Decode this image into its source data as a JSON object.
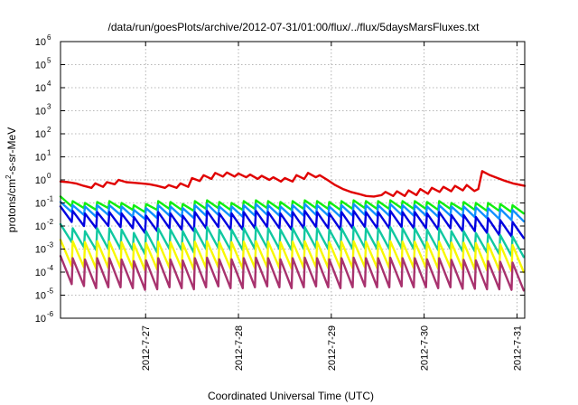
{
  "chart_data": {
    "type": "line",
    "title": "/data/run/goesPlots/archive/2012-07-31/01:00/flux/../flux/5daysMarsFluxes.txt",
    "xlabel": "Coordinated Universal Time (UTC)",
    "ylabel": {
      "base": "protons/cm",
      "sup": "2",
      "rest": "-s-sr-MeV"
    },
    "yscale": "log",
    "ylim_exp": [
      -6,
      6
    ],
    "yticks": [
      {
        "base": "10",
        "exp": "-6"
      },
      {
        "base": "10",
        "exp": "-5"
      },
      {
        "base": "10",
        "exp": "-4"
      },
      {
        "base": "10",
        "exp": "-3"
      },
      {
        "base": "10",
        "exp": "-2"
      },
      {
        "base": "10",
        "exp": "-1"
      },
      {
        "base": "10",
        "exp": "0"
      },
      {
        "base": "10",
        "exp": "1"
      },
      {
        "base": "10",
        "exp": "2"
      },
      {
        "base": "10",
        "exp": "3"
      },
      {
        "base": "10",
        "exp": "4"
      },
      {
        "base": "10",
        "exp": "5"
      },
      {
        "base": "10",
        "exp": "6"
      }
    ],
    "xlim": [
      "2012-07-26 02:00",
      "2012-07-31 02:00"
    ],
    "xticks": [
      {
        "label": "2012-7-27",
        "at": "2012-07-27 00:00"
      },
      {
        "label": "2012-7-28",
        "at": "2012-07-28 00:00"
      },
      {
        "label": "2012-7-29",
        "at": "2012-07-29 00:00"
      },
      {
        "label": "2012-7-30",
        "at": "2012-07-30 00:00"
      },
      {
        "label": "2012-7-31",
        "at": "2012-07-31 00:00"
      }
    ],
    "grid": true,
    "series": [
      {
        "color": "#e00000",
        "points": [
          [
            "2012-07-26 02:00",
            0.85
          ],
          [
            "2012-07-26 04:00",
            0.8
          ],
          [
            "2012-07-26 06:00",
            0.7
          ],
          [
            "2012-07-26 08:00",
            0.55
          ],
          [
            "2012-07-26 10:00",
            0.45
          ],
          [
            "2012-07-26 11:00",
            0.7
          ],
          [
            "2012-07-26 13:00",
            0.5
          ],
          [
            "2012-07-26 14:00",
            0.8
          ],
          [
            "2012-07-26 16:00",
            0.65
          ],
          [
            "2012-07-26 17:00",
            1.0
          ],
          [
            "2012-07-26 19:00",
            0.8
          ],
          [
            "2012-07-26 21:00",
            0.75
          ],
          [
            "2012-07-26 23:00",
            0.7
          ],
          [
            "2012-07-27 01:00",
            0.65
          ],
          [
            "2012-07-27 03:00",
            0.55
          ],
          [
            "2012-07-27 05:00",
            0.45
          ],
          [
            "2012-07-27 06:00",
            0.6
          ],
          [
            "2012-07-27 08:00",
            0.45
          ],
          [
            "2012-07-27 09:00",
            0.7
          ],
          [
            "2012-07-27 11:00",
            0.5
          ],
          [
            "2012-07-27 12:00",
            1.2
          ],
          [
            "2012-07-27 14:00",
            0.9
          ],
          [
            "2012-07-27 15:00",
            1.6
          ],
          [
            "2012-07-27 17:00",
            1.1
          ],
          [
            "2012-07-27 18:00",
            2.0
          ],
          [
            "2012-07-27 20:00",
            1.4
          ],
          [
            "2012-07-27 21:00",
            2.1
          ],
          [
            "2012-07-27 23:00",
            1.4
          ],
          [
            "2012-07-28 00:00",
            1.9
          ],
          [
            "2012-07-28 02:00",
            1.3
          ],
          [
            "2012-07-28 03:00",
            1.7
          ],
          [
            "2012-07-28 05:00",
            1.1
          ],
          [
            "2012-07-28 06:00",
            1.5
          ],
          [
            "2012-07-28 08:00",
            1.0
          ],
          [
            "2012-07-28 09:00",
            1.3
          ],
          [
            "2012-07-28 11:00",
            0.85
          ],
          [
            "2012-07-28 12:00",
            1.2
          ],
          [
            "2012-07-28 14:00",
            0.85
          ],
          [
            "2012-07-28 15:00",
            1.6
          ],
          [
            "2012-07-28 17:00",
            1.1
          ],
          [
            "2012-07-28 18:00",
            2.0
          ],
          [
            "2012-07-28 20:00",
            1.3
          ],
          [
            "2012-07-28 21:00",
            1.6
          ],
          [
            "2012-07-28 23:00",
            1.0
          ],
          [
            "2012-07-29 01:00",
            0.6
          ],
          [
            "2012-07-29 03:00",
            0.4
          ],
          [
            "2012-07-29 05:00",
            0.3
          ],
          [
            "2012-07-29 07:00",
            0.25
          ],
          [
            "2012-07-29 09:00",
            0.2
          ],
          [
            "2012-07-29 11:00",
            0.19
          ],
          [
            "2012-07-29 13:00",
            0.22
          ],
          [
            "2012-07-29 14:00",
            0.3
          ],
          [
            "2012-07-29 16:00",
            0.2
          ],
          [
            "2012-07-29 17:00",
            0.32
          ],
          [
            "2012-07-29 19:00",
            0.2
          ],
          [
            "2012-07-29 20:00",
            0.35
          ],
          [
            "2012-07-29 22:00",
            0.22
          ],
          [
            "2012-07-29 23:00",
            0.4
          ],
          [
            "2012-07-30 01:00",
            0.25
          ],
          [
            "2012-07-30 02:00",
            0.45
          ],
          [
            "2012-07-30 04:00",
            0.3
          ],
          [
            "2012-07-30 05:00",
            0.5
          ],
          [
            "2012-07-30 07:00",
            0.32
          ],
          [
            "2012-07-30 08:00",
            0.55
          ],
          [
            "2012-07-30 10:00",
            0.35
          ],
          [
            "2012-07-30 11:00",
            0.6
          ],
          [
            "2012-07-30 13:00",
            0.33
          ],
          [
            "2012-07-30 14:00",
            0.4
          ],
          [
            "2012-07-30 15:00",
            2.4
          ],
          [
            "2012-07-30 17:00",
            1.6
          ],
          [
            "2012-07-30 19:00",
            1.2
          ],
          [
            "2012-07-30 21:00",
            0.9
          ],
          [
            "2012-07-30 23:00",
            0.7
          ],
          [
            "2012-07-31 01:00",
            0.6
          ],
          [
            "2012-07-31 02:00",
            0.55
          ]
        ]
      },
      {
        "color": "#10ee10",
        "sawtooth": {
          "peaks": [
            0.19,
            0.12,
            0.1,
            0.11,
            0.12,
            0.1,
            0.08,
            0.09,
            0.12,
            0.11,
            0.09,
            0.12,
            0.13,
            0.11,
            0.1,
            0.12,
            0.13,
            0.12,
            0.11,
            0.12,
            0.13,
            0.12,
            0.11,
            0.12,
            0.13,
            0.12,
            0.12,
            0.13,
            0.12,
            0.12,
            0.11,
            0.12,
            0.1,
            0.11,
            0.1,
            0.1,
            0.09,
            0.08
          ],
          "troughs": [
            0.07,
            0.06,
            0.05,
            0.06,
            0.06,
            0.05,
            0.04,
            0.05,
            0.055,
            0.05,
            0.045,
            0.055,
            0.06,
            0.05,
            0.05,
            0.055,
            0.06,
            0.055,
            0.05,
            0.055,
            0.06,
            0.055,
            0.05,
            0.055,
            0.06,
            0.055,
            0.055,
            0.06,
            0.055,
            0.055,
            0.05,
            0.055,
            0.05,
            0.05,
            0.045,
            0.045,
            0.04,
            0.035
          ]
        }
      },
      {
        "color": "#1090ff",
        "sawtooth": {
          "peaks": [
            0.11,
            0.08,
            0.07,
            0.08,
            0.08,
            0.07,
            0.05,
            0.06,
            0.08,
            0.07,
            0.06,
            0.08,
            0.09,
            0.07,
            0.07,
            0.08,
            0.09,
            0.08,
            0.07,
            0.08,
            0.09,
            0.08,
            0.07,
            0.08,
            0.09,
            0.08,
            0.08,
            0.09,
            0.08,
            0.08,
            0.07,
            0.08,
            0.07,
            0.07,
            0.065,
            0.06,
            0.055,
            0.05
          ],
          "troughs": [
            0.04,
            0.03,
            0.025,
            0.03,
            0.03,
            0.025,
            0.02,
            0.022,
            0.028,
            0.025,
            0.022,
            0.028,
            0.03,
            0.026,
            0.025,
            0.028,
            0.03,
            0.028,
            0.025,
            0.028,
            0.03,
            0.028,
            0.025,
            0.028,
            0.03,
            0.028,
            0.028,
            0.03,
            0.028,
            0.028,
            0.025,
            0.028,
            0.025,
            0.024,
            0.022,
            0.02,
            0.018,
            0.016
          ]
        }
      },
      {
        "color": "#0000e0",
        "sawtooth": {
          "peaks": [
            0.07,
            0.045,
            0.035,
            0.04,
            0.04,
            0.035,
            0.025,
            0.028,
            0.04,
            0.035,
            0.028,
            0.04,
            0.045,
            0.035,
            0.035,
            0.04,
            0.045,
            0.04,
            0.035,
            0.04,
            0.045,
            0.04,
            0.035,
            0.04,
            0.045,
            0.04,
            0.04,
            0.045,
            0.04,
            0.04,
            0.035,
            0.04,
            0.03,
            0.03,
            0.025,
            0.022,
            0.018,
            0.015
          ],
          "troughs": [
            0.015,
            0.01,
            0.008,
            0.01,
            0.009,
            0.008,
            0.005,
            0.006,
            0.008,
            0.007,
            0.006,
            0.008,
            0.009,
            0.007,
            0.007,
            0.008,
            0.009,
            0.008,
            0.007,
            0.008,
            0.009,
            0.008,
            0.007,
            0.008,
            0.009,
            0.008,
            0.008,
            0.009,
            0.008,
            0.008,
            0.007,
            0.008,
            0.006,
            0.006,
            0.005,
            0.004,
            0.0035,
            0.003
          ]
        }
      },
      {
        "color": "#10c8a0",
        "sawtooth": {
          "peaks": [
            0.012,
            0.008,
            0.006,
            0.008,
            0.008,
            0.007,
            0.005,
            0.006,
            0.008,
            0.007,
            0.006,
            0.008,
            0.009,
            0.007,
            0.007,
            0.008,
            0.009,
            0.008,
            0.007,
            0.008,
            0.009,
            0.008,
            0.007,
            0.008,
            0.009,
            0.008,
            0.008,
            0.009,
            0.008,
            0.008,
            0.007,
            0.008,
            0.006,
            0.006,
            0.005,
            0.0045,
            0.004,
            0.0035
          ],
          "troughs": [
            0.002,
            0.0012,
            0.0009,
            0.001,
            0.001,
            0.0009,
            0.0006,
            0.0007,
            0.001,
            0.0009,
            0.0007,
            0.001,
            0.0011,
            0.0009,
            0.0009,
            0.001,
            0.0011,
            0.001,
            0.0009,
            0.001,
            0.0011,
            0.001,
            0.0009,
            0.001,
            0.0011,
            0.001,
            0.001,
            0.0011,
            0.001,
            0.001,
            0.0009,
            0.001,
            0.0008,
            0.0008,
            0.0007,
            0.0006,
            0.0005,
            0.00045
          ]
        }
      },
      {
        "color": "#f8f800",
        "sawtooth": {
          "peaks": [
            0.0025,
            0.0022,
            0.002,
            0.0022,
            0.0021,
            0.002,
            0.0017,
            0.0018,
            0.0021,
            0.002,
            0.0018,
            0.0021,
            0.0022,
            0.002,
            0.002,
            0.0021,
            0.0022,
            0.0021,
            0.002,
            0.0021,
            0.0022,
            0.0021,
            0.002,
            0.0021,
            0.0022,
            0.0021,
            0.0021,
            0.0022,
            0.0021,
            0.0021,
            0.002,
            0.0021,
            0.0019,
            0.0019,
            0.0018,
            0.0017,
            0.0016,
            0.0015
          ],
          "troughs": [
            0.00018,
            0.00016,
            0.00014,
            0.00015,
            0.00015,
            0.00014,
            0.00012,
            0.00013,
            0.00015,
            0.00014,
            0.00013,
            0.00015,
            0.00016,
            0.00014,
            0.00014,
            0.00015,
            0.00016,
            0.00015,
            0.00014,
            0.00015,
            0.00016,
            0.00015,
            0.00014,
            0.00015,
            0.00016,
            0.00015,
            0.00015,
            0.00016,
            0.00015,
            0.00015,
            0.00014,
            0.00015,
            0.00013,
            0.00013,
            0.00012,
            0.00012,
            0.00011,
            0.0001
          ]
        }
      },
      {
        "color": "#a8326e",
        "sawtooth": {
          "peaks": [
            0.0005,
            0.0004,
            0.00035,
            0.0004,
            0.0004,
            0.00035,
            0.0003,
            0.00032,
            0.0004,
            0.00035,
            0.00032,
            0.0004,
            0.00042,
            0.00036,
            0.00036,
            0.0004,
            0.00042,
            0.0004,
            0.00036,
            0.0004,
            0.00042,
            0.0004,
            0.00036,
            0.0004,
            0.00042,
            0.0004,
            0.0004,
            0.00042,
            0.0004,
            0.0004,
            0.00036,
            0.0004,
            0.00034,
            0.00034,
            0.00032,
            0.0003,
            0.00028,
            0.00026
          ],
          "troughs": [
            3e-05,
            2.5e-05,
            2e-05,
            2.2e-05,
            2.2e-05,
            2e-05,
            1.7e-05,
            1.8e-05,
            2.2e-05,
            2e-05,
            1.8e-05,
            2.2e-05,
            2.4e-05,
            2e-05,
            2e-05,
            2.2e-05,
            2.4e-05,
            2.2e-05,
            2e-05,
            2.2e-05,
            2.4e-05,
            2.2e-05,
            2e-05,
            2.2e-05,
            2.4e-05,
            2.2e-05,
            2.2e-05,
            2.4e-05,
            2.2e-05,
            2.2e-05,
            2e-05,
            2.2e-05,
            1.9e-05,
            1.9e-05,
            1.8e-05,
            1.8e-05,
            1.7e-05,
            1.6e-05
          ]
        }
      }
    ]
  }
}
